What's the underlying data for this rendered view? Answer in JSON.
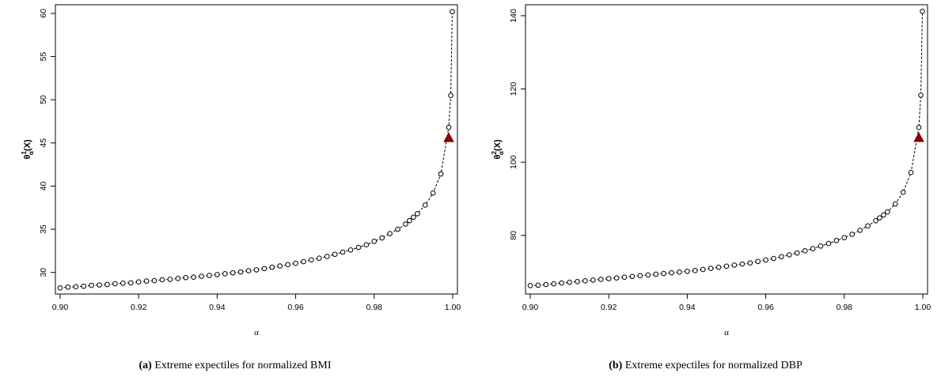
{
  "panels": [
    {
      "caption_tag": "(a)",
      "caption_text": "Extreme expectiles for normalized BMI",
      "ylabel_main": "θ",
      "ylabel_sup": "1",
      "ylabel_sub": "α",
      "ylabel_paren": "(X)"
    },
    {
      "caption_tag": "(b)",
      "caption_text": "Extreme expectiles for normalized DBP",
      "ylabel_main": "θ",
      "ylabel_sup": "2",
      "ylabel_sub": "α",
      "ylabel_paren": "(X)"
    }
  ],
  "chart_data": [
    {
      "type": "line",
      "xlabel": "α",
      "xlim": [
        0.9,
        1.0
      ],
      "ylim": [
        27.5,
        61
      ],
      "xticks": [
        0.9,
        0.92,
        0.94,
        0.96,
        0.98,
        1.0
      ],
      "xtick_labels": [
        "0.90",
        "0.92",
        "0.94",
        "0.96",
        "0.98",
        "1.00"
      ],
      "yticks": [
        30,
        35,
        40,
        45,
        50,
        55,
        60
      ],
      "ytick_labels": [
        "30",
        "35",
        "40",
        "45",
        "50",
        "55",
        "60"
      ],
      "series": [
        {
          "style": "dashed line with open circles",
          "x": [
            0.9,
            0.902,
            0.904,
            0.906,
            0.908,
            0.91,
            0.912,
            0.914,
            0.916,
            0.918,
            0.92,
            0.922,
            0.924,
            0.926,
            0.928,
            0.93,
            0.932,
            0.934,
            0.936,
            0.938,
            0.94,
            0.942,
            0.944,
            0.946,
            0.948,
            0.95,
            0.952,
            0.954,
            0.956,
            0.958,
            0.96,
            0.962,
            0.964,
            0.966,
            0.968,
            0.97,
            0.972,
            0.974,
            0.976,
            0.978,
            0.98,
            0.982,
            0.984,
            0.986,
            0.988,
            0.989,
            0.99,
            0.991,
            0.993,
            0.995,
            0.997,
            0.999,
            0.9995,
            0.9999
          ],
          "y": [
            28.2,
            28.3,
            28.35,
            28.4,
            28.5,
            28.55,
            28.6,
            28.7,
            28.75,
            28.8,
            28.9,
            29.0,
            29.05,
            29.15,
            29.2,
            29.3,
            29.4,
            29.45,
            29.55,
            29.65,
            29.75,
            29.85,
            29.95,
            30.05,
            30.2,
            30.3,
            30.45,
            30.6,
            30.75,
            30.9,
            31.05,
            31.25,
            31.45,
            31.65,
            31.85,
            32.1,
            32.35,
            32.6,
            32.9,
            33.2,
            33.6,
            34.0,
            34.5,
            35.0,
            35.6,
            36.0,
            36.4,
            36.8,
            37.8,
            39.2,
            41.4,
            46.8,
            50.5,
            60.2
          ]
        },
        {
          "style": "red filled triangle",
          "x": [
            0.999
          ],
          "y": [
            45.6
          ]
        }
      ]
    },
    {
      "type": "line",
      "xlabel": "α",
      "xlim": [
        0.9,
        1.0
      ],
      "ylim": [
        64,
        143
      ],
      "xticks": [
        0.9,
        0.92,
        0.94,
        0.96,
        0.98,
        1.0
      ],
      "xtick_labels": [
        "0.90",
        "0.92",
        "0.94",
        "0.96",
        "0.98",
        "1.00"
      ],
      "yticks": [
        80,
        100,
        120,
        140
      ],
      "ytick_labels": [
        "80",
        "100",
        "120",
        "140"
      ],
      "series": [
        {
          "style": "dashed line with open circles",
          "x": [
            0.9,
            0.902,
            0.904,
            0.906,
            0.908,
            0.91,
            0.912,
            0.914,
            0.916,
            0.918,
            0.92,
            0.922,
            0.924,
            0.926,
            0.928,
            0.93,
            0.932,
            0.934,
            0.936,
            0.938,
            0.94,
            0.942,
            0.944,
            0.946,
            0.948,
            0.95,
            0.952,
            0.954,
            0.956,
            0.958,
            0.96,
            0.962,
            0.964,
            0.966,
            0.968,
            0.97,
            0.972,
            0.974,
            0.976,
            0.978,
            0.98,
            0.982,
            0.984,
            0.986,
            0.988,
            0.989,
            0.99,
            0.991,
            0.993,
            0.995,
            0.997,
            0.999,
            0.9995,
            0.9999
          ],
          "y": [
            66.3,
            66.4,
            66.6,
            66.8,
            67.0,
            67.2,
            67.4,
            67.6,
            67.8,
            68.0,
            68.2,
            68.4,
            68.6,
            68.8,
            69.0,
            69.2,
            69.4,
            69.6,
            69.8,
            70.0,
            70.2,
            70.4,
            70.7,
            71.0,
            71.3,
            71.6,
            71.9,
            72.2,
            72.5,
            72.9,
            73.3,
            73.7,
            74.2,
            74.7,
            75.2,
            75.8,
            76.4,
            77.1,
            77.8,
            78.6,
            79.4,
            80.3,
            81.4,
            82.6,
            84.0,
            84.8,
            85.6,
            86.4,
            88.6,
            91.8,
            97.2,
            109.5,
            118.3,
            141.2
          ]
        },
        {
          "style": "red filled triangle",
          "x": [
            0.999
          ],
          "y": [
            106.7
          ]
        }
      ]
    }
  ]
}
